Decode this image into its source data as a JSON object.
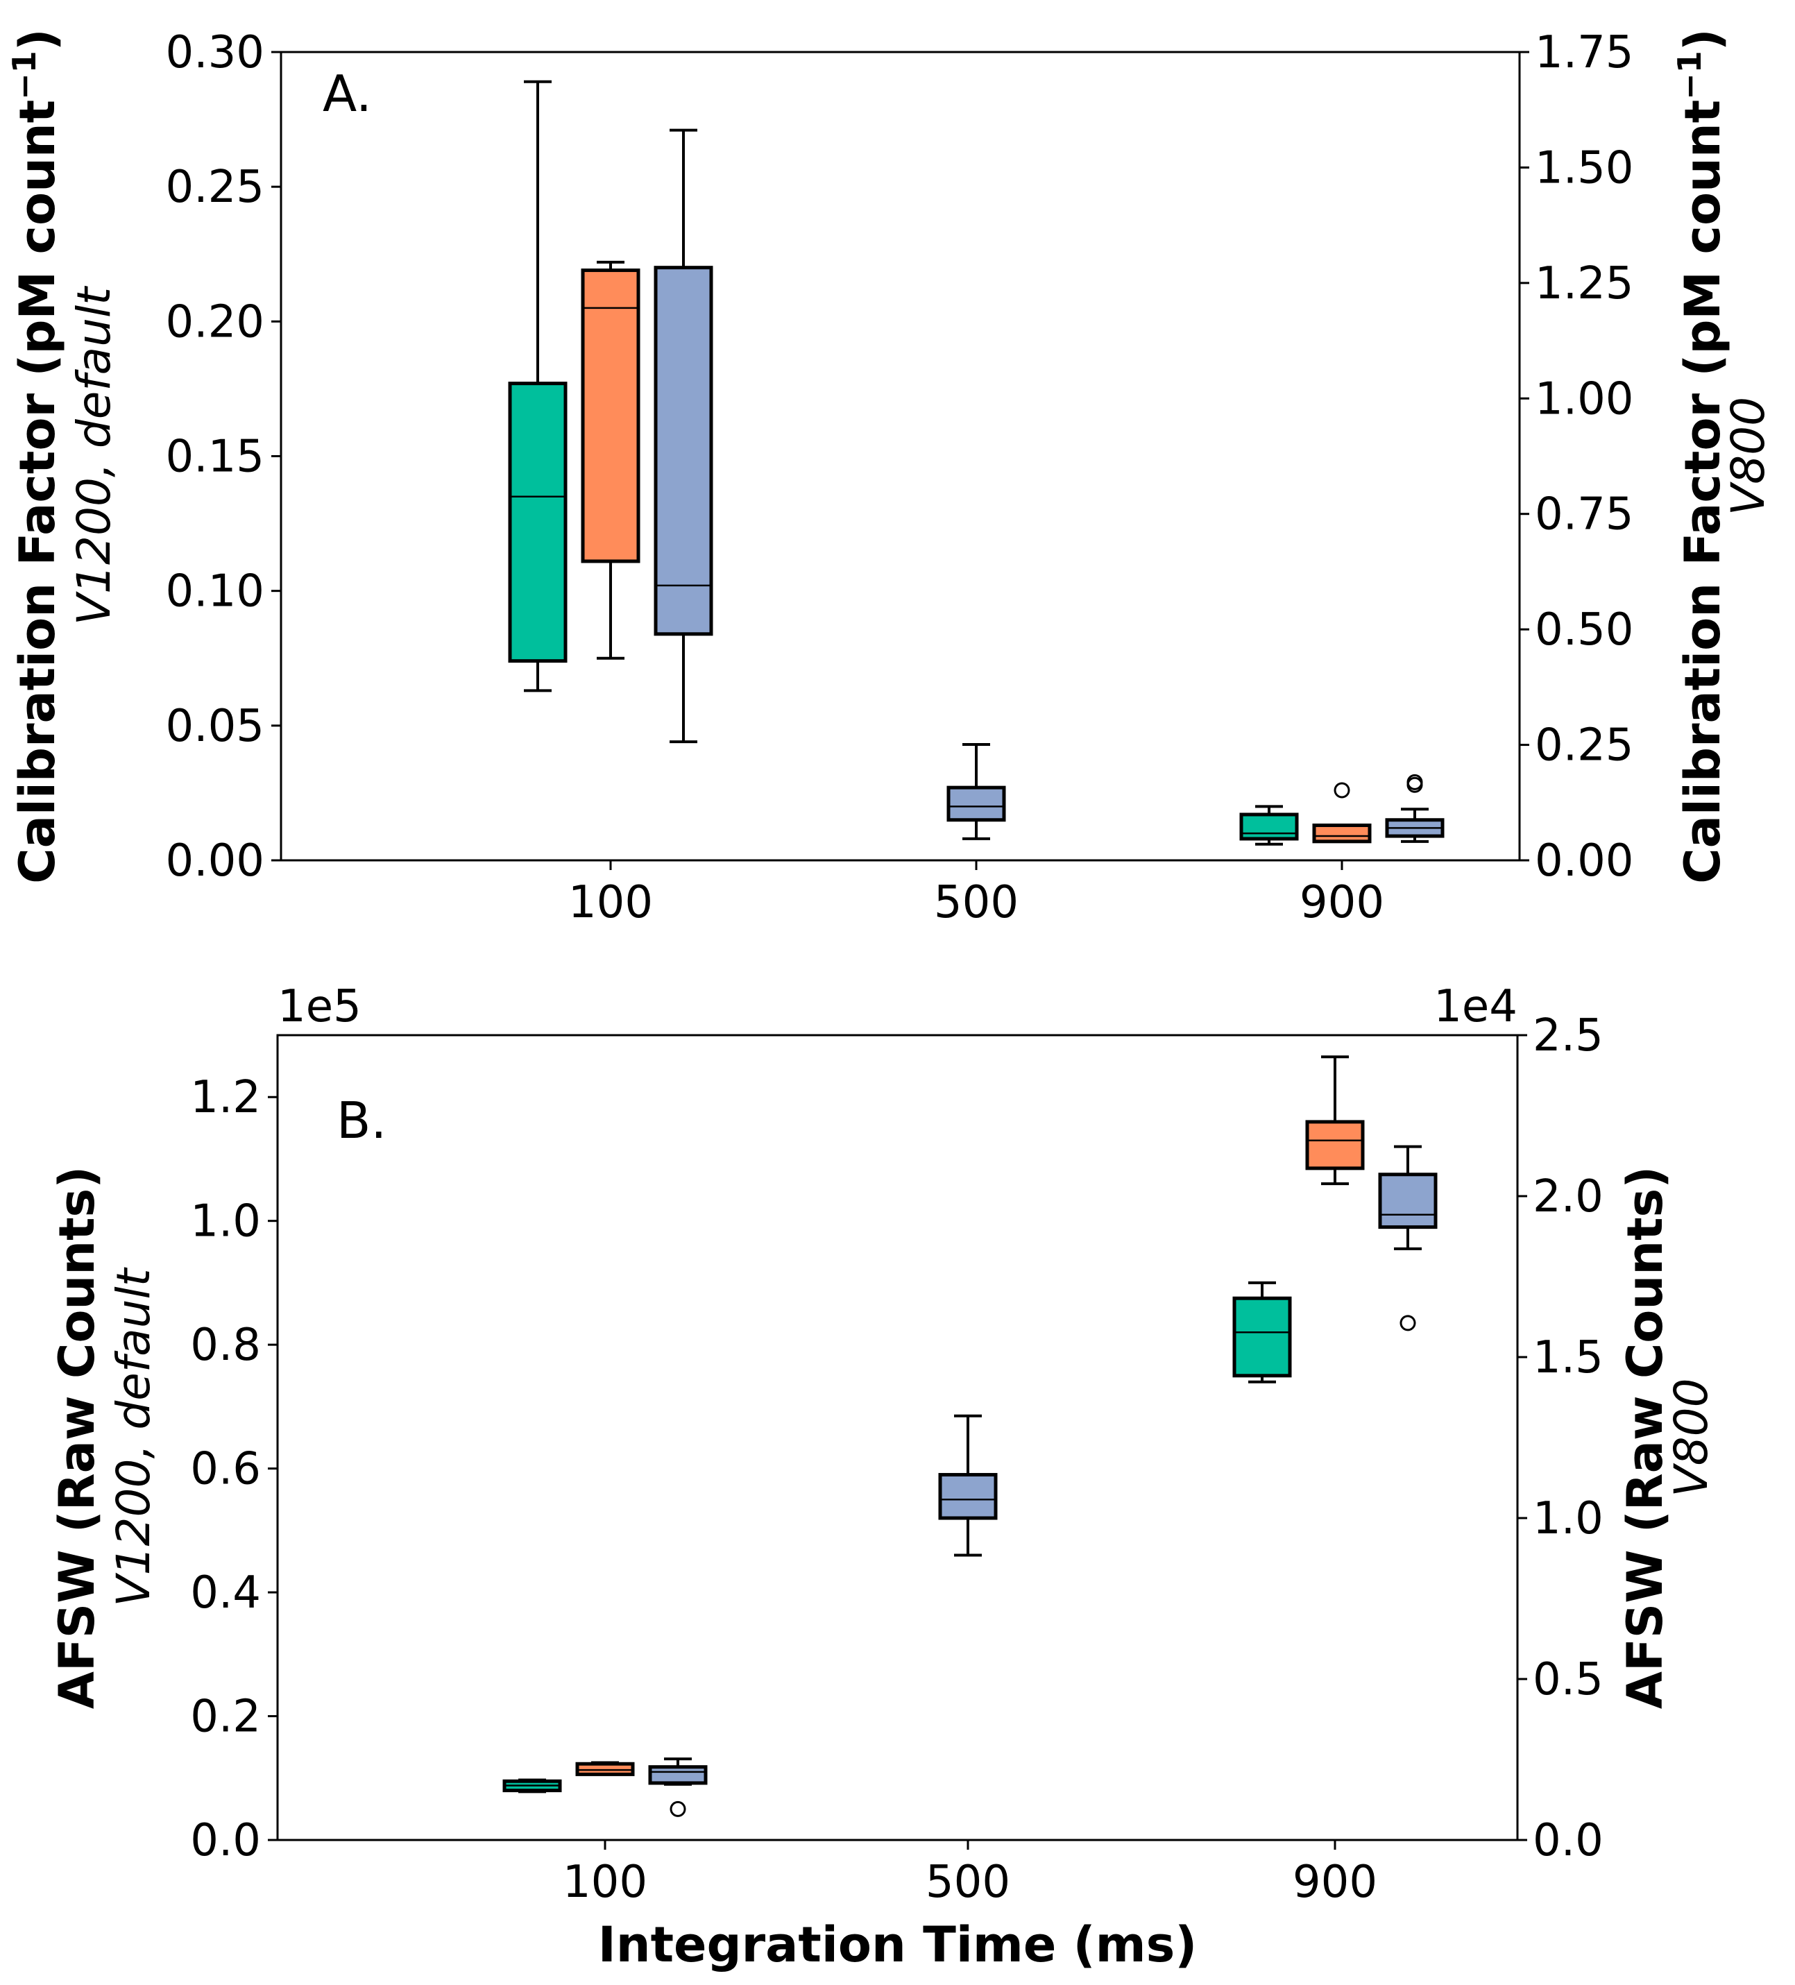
{
  "chart_data": [
    {
      "type": "box",
      "panel_label": "A.",
      "x_categories": [
        "100",
        "500",
        "900"
      ],
      "xlabel": "",
      "ylabel_left": {
        "bold": "Calibration Factor (pM count",
        "superscript": "−1",
        "close": ")",
        "italic": "V1200, default"
      },
      "ylabel_right": {
        "bold": "Calibration Factor (pM count",
        "superscript": "−1",
        "close": ")",
        "italic": "V800"
      },
      "ylim_left": [
        0,
        0.3
      ],
      "yticks_left": [
        "0.00",
        "0.05",
        "0.10",
        "0.15",
        "0.20",
        "0.25",
        "0.30"
      ],
      "ylim_right": [
        0,
        1.75
      ],
      "yticks_right": [
        "0.00",
        "0.25",
        "0.50",
        "0.75",
        "1.00",
        "1.25",
        "1.50",
        "1.75"
      ],
      "boxes": [
        {
          "category": "100",
          "offset": -1,
          "color": "#00BF9C",
          "whisker_low": 0.063,
          "q1": 0.074,
          "median": 0.135,
          "q3": 0.177,
          "whisker_high": 0.289,
          "outliers": []
        },
        {
          "category": "100",
          "offset": 0,
          "color": "#FF8C5A",
          "whisker_low": 0.075,
          "q1": 0.111,
          "median": 0.205,
          "q3": 0.219,
          "whisker_high": 0.222,
          "outliers": []
        },
        {
          "category": "100",
          "offset": 1,
          "color": "#8DA4CE",
          "whisker_low": 0.044,
          "q1": 0.084,
          "median": 0.102,
          "q3": 0.22,
          "whisker_high": 0.271,
          "outliers": []
        },
        {
          "category": "500",
          "offset": 0,
          "color": "#8DA4CE",
          "whisker_low": 0.008,
          "q1": 0.015,
          "median": 0.02,
          "q3": 0.027,
          "whisker_high": 0.043,
          "outliers": []
        },
        {
          "category": "900",
          "offset": -1,
          "color": "#00BF9C",
          "whisker_low": 0.006,
          "q1": 0.008,
          "median": 0.01,
          "q3": 0.017,
          "whisker_high": 0.02,
          "outliers": []
        },
        {
          "category": "900",
          "offset": 0,
          "color": "#FF8C5A",
          "whisker_low": 0.007,
          "q1": 0.007,
          "median": 0.009,
          "q3": 0.013,
          "whisker_high": 0.013,
          "outliers": [
            0.026
          ]
        },
        {
          "category": "900",
          "offset": 1,
          "color": "#8DA4CE",
          "whisker_low": 0.007,
          "q1": 0.009,
          "median": 0.012,
          "q3": 0.015,
          "whisker_high": 0.019,
          "outliers": [
            0.029,
            0.028
          ]
        }
      ]
    },
    {
      "type": "box",
      "panel_label": "B.",
      "x_categories": [
        "100",
        "500",
        "900"
      ],
      "xlabel": "Integration Time (ms)",
      "ylabel_left": {
        "bold": "AFSW (Raw Counts)",
        "italic": "V1200, default"
      },
      "ylabel_right": {
        "bold": "AFSW (Raw Counts)",
        "italic": "V800"
      },
      "sci_left": "1e5",
      "sci_right": "1e4",
      "ylim_left": [
        0,
        1.3
      ],
      "yticks_left": [
        "0.0",
        "0.2",
        "0.4",
        "0.6",
        "0.8",
        "1.0",
        "1.2"
      ],
      "ylim_right": [
        0,
        2.5
      ],
      "yticks_right": [
        "0.0",
        "0.5",
        "1.0",
        "1.5",
        "2.0",
        "2.5"
      ],
      "boxes": [
        {
          "category": "100",
          "offset": -1,
          "color": "#00BF9C",
          "whisker_low": 0.078,
          "q1": 0.08,
          "median": 0.088,
          "q3": 0.095,
          "whisker_high": 0.097,
          "outliers": []
        },
        {
          "category": "100",
          "offset": 0,
          "color": "#FF8C5A",
          "whisker_low": 0.106,
          "q1": 0.106,
          "median": 0.113,
          "q3": 0.123,
          "whisker_high": 0.125,
          "outliers": []
        },
        {
          "category": "100",
          "offset": 1,
          "color": "#8DA4CE",
          "whisker_low": 0.09,
          "q1": 0.092,
          "median": 0.11,
          "q3": 0.118,
          "whisker_high": 0.131,
          "outliers": [
            0.05
          ]
        },
        {
          "category": "500",
          "offset": 0,
          "color": "#8DA4CE",
          "whisker_low": 0.46,
          "q1": 0.52,
          "median": 0.55,
          "q3": 0.59,
          "whisker_high": 0.685,
          "outliers": []
        },
        {
          "category": "900",
          "offset": -1,
          "color": "#00BF9C",
          "whisker_low": 0.74,
          "q1": 0.75,
          "median": 0.82,
          "q3": 0.875,
          "whisker_high": 0.9,
          "outliers": []
        },
        {
          "category": "900",
          "offset": 0,
          "color": "#FF8C5A",
          "whisker_low": 1.06,
          "q1": 1.085,
          "median": 1.13,
          "q3": 1.16,
          "whisker_high": 1.265,
          "outliers": []
        },
        {
          "category": "900",
          "offset": 1,
          "color": "#8DA4CE",
          "whisker_low": 0.955,
          "q1": 0.99,
          "median": 1.01,
          "q3": 1.075,
          "whisker_high": 1.12,
          "outliers": [
            0.835
          ]
        }
      ]
    }
  ]
}
